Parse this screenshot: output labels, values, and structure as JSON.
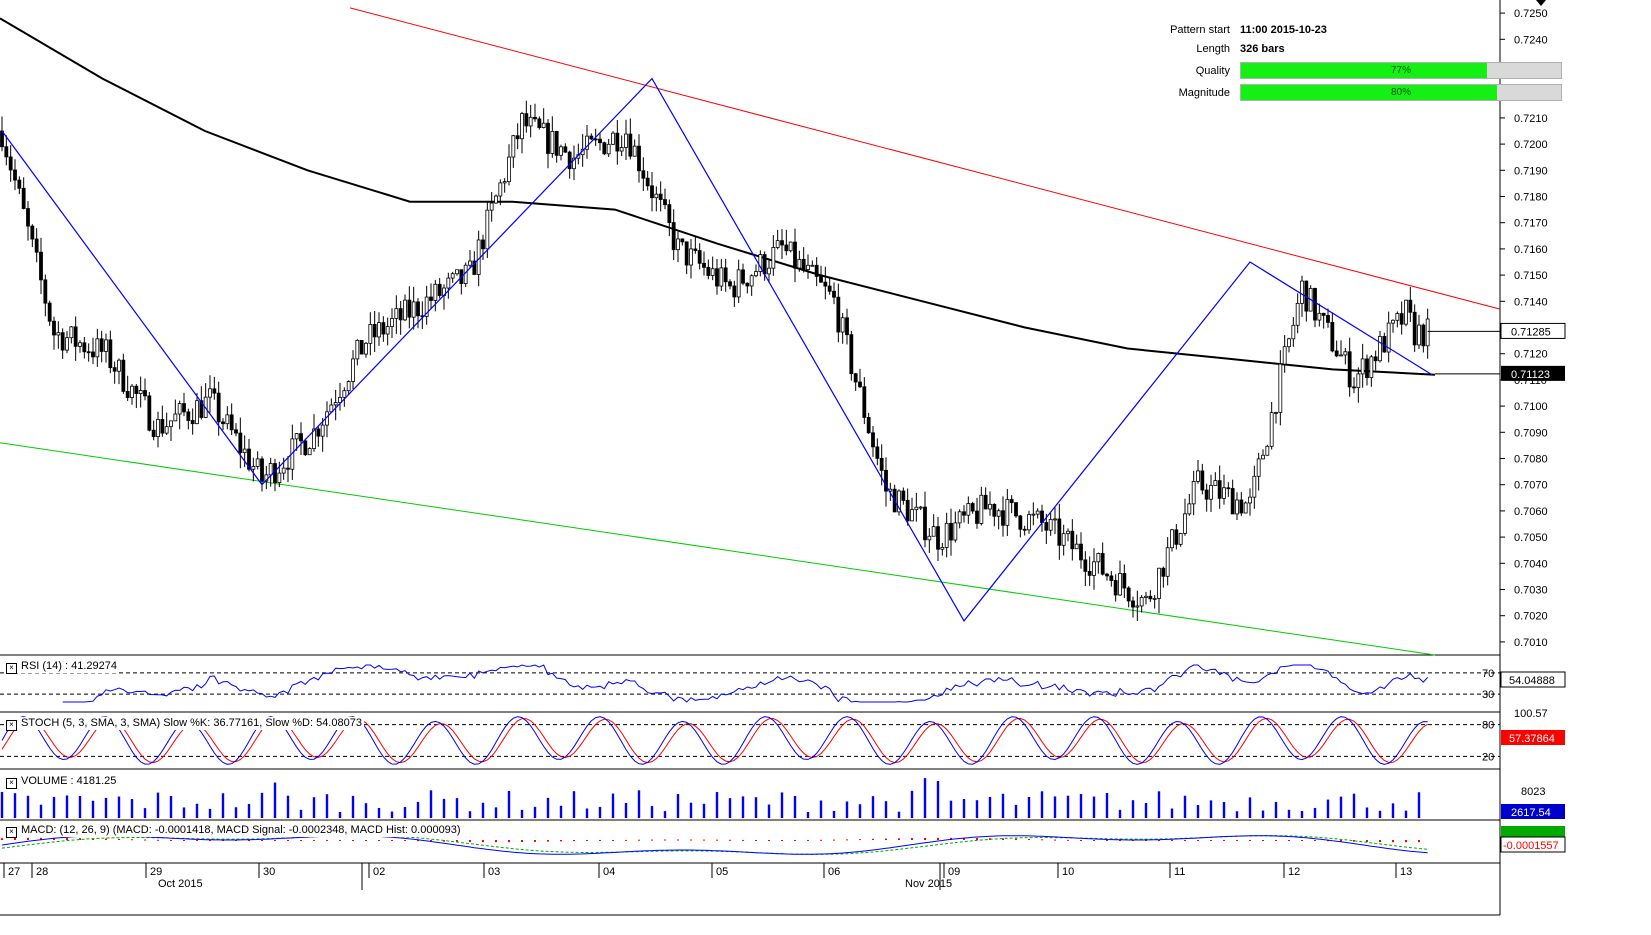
{
  "info": {
    "pattern_start_label": "Pattern start",
    "pattern_start_value": "11:00 2015-10-23",
    "length_label": "Length",
    "length_value": "326 bars",
    "quality_label": "Quality",
    "quality_value": "77%",
    "quality_fraction": 0.77,
    "magnitude_label": "Magnitude",
    "magnitude_value": "80%",
    "magnitude_fraction": 0.8
  },
  "indicators": {
    "rsi_title": "RSI (14) : 41.29274",
    "rsi_levels": [
      "70",
      "30"
    ],
    "rsi_value": "54.04888",
    "stoch_title": "STOCH (5, 3, SMA, 3, SMA) Slow %K: 36.77161, Slow %D: 54.08073",
    "stoch_levels": [
      "80",
      "20"
    ],
    "stoch_value": "57.37864",
    "stoch_top_partial": "100.57",
    "volume_title": "VOLUME : 4181.25",
    "volume_tick": "8023",
    "volume_value": "2617.54",
    "macd_title": "MACD: (12, 26, 9) (MACD: -0.0001418, MACD Signal: -0.0002348, MACD Hist: 0.000093)",
    "macd_value": "-0.0001557"
  },
  "price_labels": {
    "current": "0.71285",
    "ma": "0.71123"
  },
  "colors": {
    "candle": "#000000",
    "resistance": "#ff0000",
    "support": "#00cc00",
    "zigzag": "#0000ff",
    "ma": "#000000",
    "rsi": "#0000ff",
    "stoch_k": "#0000ff",
    "stoch_d": "#ff0000",
    "volume": "#0000ff",
    "macd": "#0000ff",
    "signal": "#00aa00",
    "hist": "#ff0000",
    "bar_fill": "#14f014"
  },
  "chart_data": {
    "type": "line",
    "instrument_note": "",
    "y_ticks": [
      "0.7250",
      "0.7240",
      "0.7230",
      "0.7220",
      "0.7210",
      "0.7200",
      "0.7190",
      "0.7180",
      "0.7170",
      "0.7160",
      "0.7150",
      "0.7140",
      "0.7130",
      "0.7120",
      "0.7110",
      "0.7100",
      "0.7090",
      "0.7080",
      "0.7070",
      "0.7060",
      "0.7050",
      "0.7040",
      "0.7030",
      "0.7020",
      "0.7010"
    ],
    "ylim": [
      0.7005,
      0.7255
    ],
    "x_day_labels": [
      "27",
      "28",
      "29",
      "30",
      "02",
      "03",
      "04",
      "05",
      "06",
      "09",
      "10",
      "11",
      "12",
      "13"
    ],
    "x_month_labels": [
      "Oct 2015",
      "Nov 2015"
    ],
    "grid": false,
    "series": [
      {
        "x": [
          0,
          12,
          24,
          36,
          48,
          60,
          72,
          84,
          96,
          108,
          120,
          132,
          144,
          156,
          168,
          180,
          192,
          204,
          216,
          228,
          240,
          252,
          264,
          276,
          288,
          300,
          312,
          324,
          326
        ],
        "values": [
          0.7205,
          0.7128,
          0.712,
          0.7092,
          0.7102,
          0.7072,
          0.709,
          0.7125,
          0.7138,
          0.715,
          0.7208,
          0.7195,
          0.7205,
          0.716,
          0.7145,
          0.716,
          0.714,
          0.7068,
          0.705,
          0.7062,
          0.7055,
          0.704,
          0.7025,
          0.707,
          0.7062,
          0.7145,
          0.711,
          0.7135,
          0.7128
        ]
      },
      {
        "x": [
          0,
          60,
          150,
          222,
          288,
          330
        ],
        "values": [
          0.7205,
          0.707,
          0.7225,
          0.7018,
          0.7155,
          0.7112
        ]
      }
    ],
    "ma_values": [
      0.7248,
      0.7225,
      0.7205,
      0.719,
      0.7178,
      0.7178,
      0.7175,
      0.7162,
      0.715,
      0.714,
      0.713,
      0.7122,
      0.7118,
      0.7114,
      0.7112
    ]
  }
}
